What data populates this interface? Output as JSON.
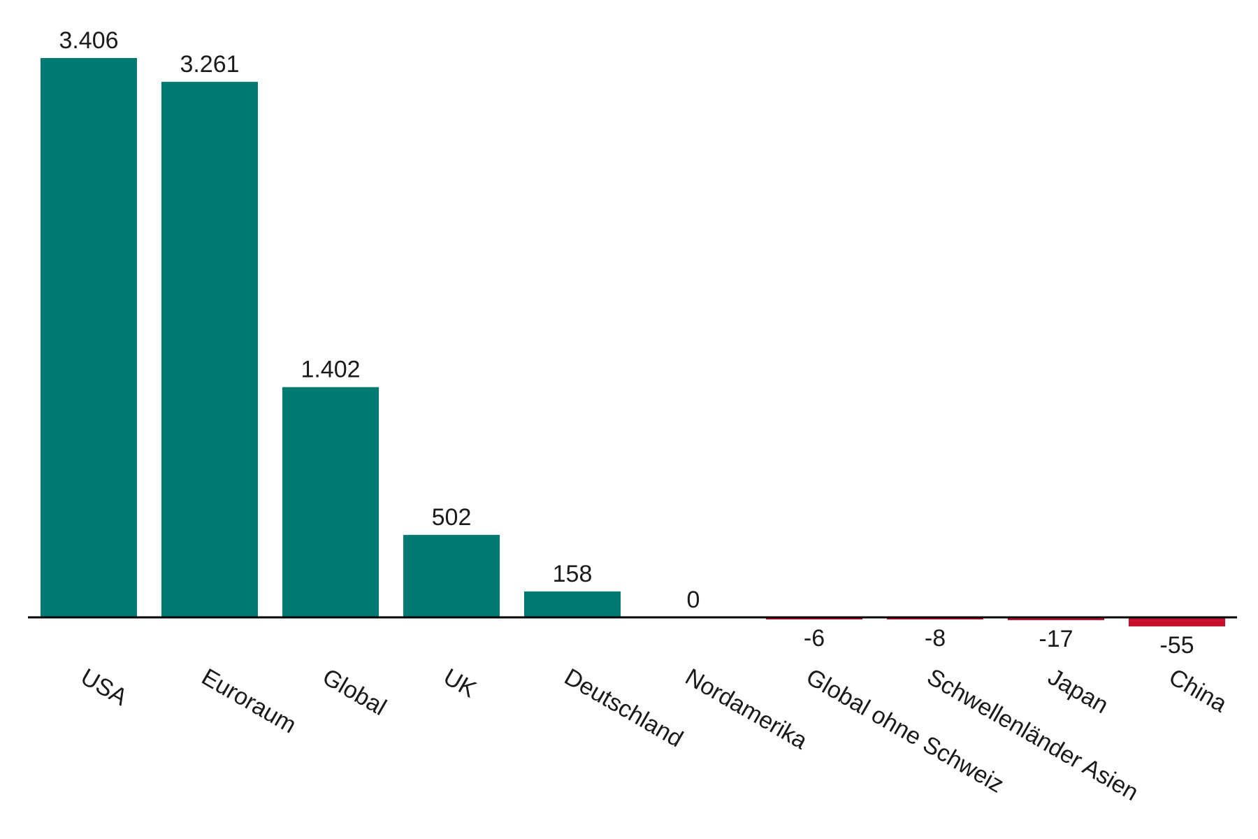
{
  "chart_data": {
    "type": "bar",
    "categories": [
      "USA",
      "Euroraum",
      "Global",
      "UK",
      "Deutschland",
      "Nordamerika",
      "Global ohne Schweiz",
      "Schwellenländer Asien",
      "Japan",
      "China"
    ],
    "values": [
      3406,
      3261,
      1402,
      502,
      158,
      0,
      -6,
      -8,
      -17,
      -55
    ],
    "value_labels": [
      "3.406",
      "3.261",
      "1.402",
      "502",
      "158",
      "0",
      "-6",
      "-8",
      "-17",
      "-55"
    ],
    "title": "",
    "xlabel": "",
    "ylabel": "",
    "grid": false,
    "legend": "none",
    "colors": {
      "positive": "#007a73",
      "negative": "#c8102e",
      "zero": "#b0b0b0",
      "axis": "#000000",
      "text": "#1a1a1a"
    }
  }
}
